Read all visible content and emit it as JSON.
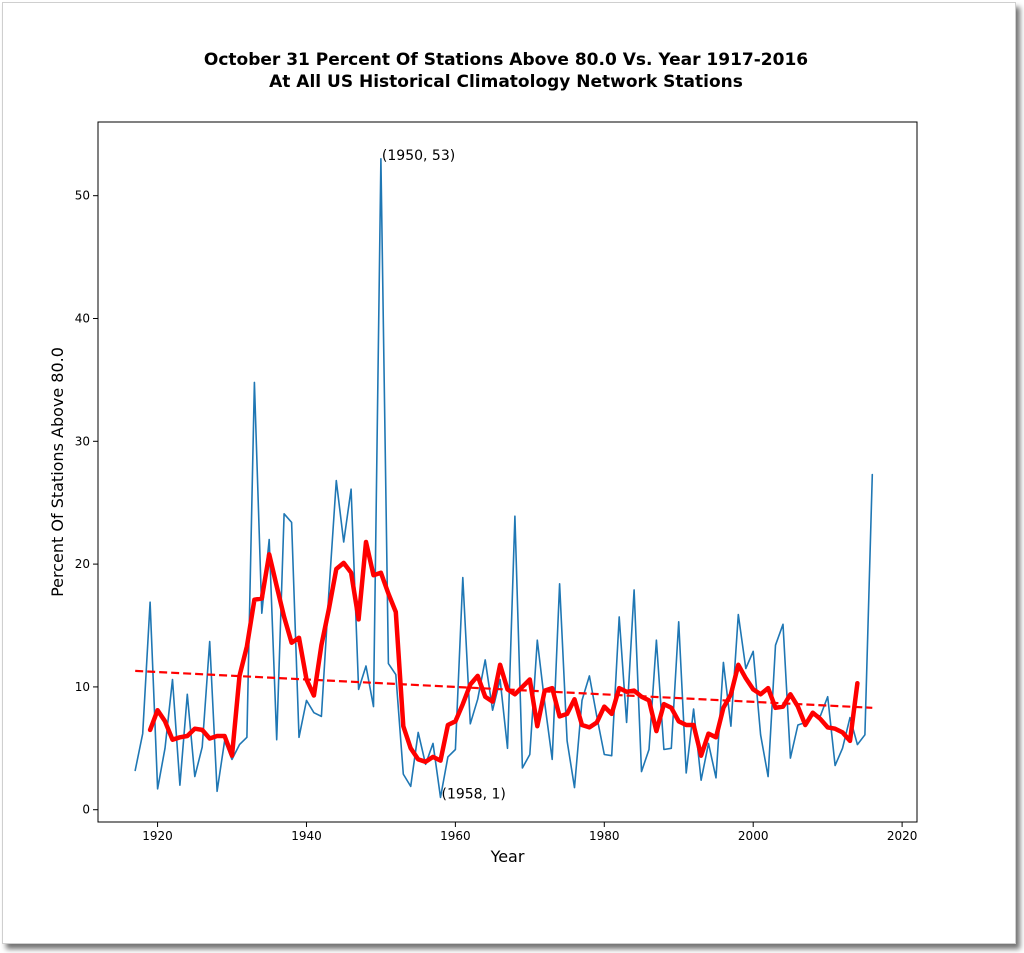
{
  "chart_data": {
    "type": "line",
    "title_line1": "October 31 Percent Of Stations Above 80.0 Vs. Year 1917-2016",
    "title_line2": "At All US Historical Climatology Network Stations",
    "xlabel": "Year",
    "ylabel": "Percent Of Stations Above 80.0",
    "xlim": [
      1912,
      2022
    ],
    "ylim": [
      -1,
      56
    ],
    "x_ticks": [
      1920,
      1940,
      1960,
      1980,
      2000,
      2020
    ],
    "y_ticks": [
      0,
      10,
      20,
      30,
      40,
      50
    ],
    "grid": false,
    "series": [
      {
        "style": "thin",
        "color": "#1f77b4",
        "x": [
          1917,
          1918,
          1919,
          1920,
          1921,
          1922,
          1923,
          1924,
          1925,
          1926,
          1927,
          1928,
          1929,
          1930,
          1931,
          1932,
          1933,
          1934,
          1935,
          1936,
          1937,
          1938,
          1939,
          1940,
          1941,
          1942,
          1943,
          1944,
          1945,
          1946,
          1947,
          1948,
          1949,
          1950,
          1951,
          1952,
          1953,
          1954,
          1955,
          1956,
          1957,
          1958,
          1959,
          1960,
          1961,
          1962,
          1963,
          1964,
          1965,
          1966,
          1967,
          1968,
          1969,
          1970,
          1971,
          1972,
          1973,
          1974,
          1975,
          1976,
          1977,
          1978,
          1979,
          1980,
          1981,
          1982,
          1983,
          1984,
          1985,
          1986,
          1987,
          1988,
          1989,
          1990,
          1991,
          1992,
          1993,
          1994,
          1995,
          1996,
          1997,
          1998,
          1999,
          2000,
          2001,
          2002,
          2003,
          2004,
          2005,
          2006,
          2007,
          2008,
          2009,
          2010,
          2011,
          2012,
          2013,
          2014,
          2015,
          2016
        ],
        "y": [
          3.2,
          6.2,
          16.9,
          1.7,
          5.0,
          10.6,
          2.0,
          9.4,
          2.7,
          5.1,
          13.7,
          1.5,
          5.6,
          4.1,
          5.3,
          5.9,
          34.8,
          16.0,
          22.0,
          5.7,
          24.1,
          23.4,
          5.9,
          8.9,
          7.9,
          7.6,
          17.6,
          26.8,
          21.8,
          26.1,
          9.8,
          11.7,
          8.4,
          53.0,
          11.9,
          11.0,
          2.9,
          1.9,
          6.3,
          3.7,
          5.4,
          1.0,
          4.3,
          4.9,
          18.9,
          7.0,
          9.0,
          12.2,
          8.1,
          10.6,
          5.0,
          23.9,
          3.4,
          4.5,
          13.8,
          8.7,
          4.1,
          18.4,
          5.6,
          1.8,
          8.9,
          10.9,
          7.6,
          4.5,
          4.4,
          15.7,
          7.1,
          17.9,
          3.1,
          4.9,
          13.8,
          4.9,
          5.0,
          15.3,
          3.0,
          8.2,
          2.4,
          5.4,
          2.6,
          12.0,
          6.8,
          15.9,
          11.5,
          12.9,
          6.1,
          2.7,
          13.4,
          15.1,
          4.2,
          6.9,
          7.1,
          7.9,
          7.6,
          9.2,
          3.6,
          5.0,
          7.5,
          5.3,
          6.1,
          27.3
        ]
      },
      {
        "style": "thick",
        "color": "#ff0000",
        "x": [
          1919,
          1920,
          1921,
          1922,
          1923,
          1924,
          1925,
          1926,
          1927,
          1928,
          1929,
          1930,
          1931,
          1932,
          1933,
          1934,
          1935,
          1936,
          1937,
          1938,
          1939,
          1940,
          1941,
          1942,
          1943,
          1944,
          1945,
          1946,
          1947,
          1948,
          1949,
          1950,
          1951,
          1952,
          1953,
          1954,
          1955,
          1956,
          1957,
          1958,
          1959,
          1960,
          1961,
          1962,
          1963,
          1964,
          1965,
          1966,
          1967,
          1968,
          1969,
          1970,
          1971,
          1972,
          1973,
          1974,
          1975,
          1976,
          1977,
          1978,
          1979,
          1980,
          1981,
          1982,
          1983,
          1984,
          1985,
          1986,
          1987,
          1988,
          1989,
          1990,
          1991,
          1992,
          1993,
          1994,
          1995,
          1996,
          1997,
          1998,
          1999,
          2000,
          2001,
          2002,
          2003,
          2004,
          2005,
          2006,
          2007,
          2008,
          2009,
          2010,
          2011,
          2012,
          2013,
          2014
        ],
        "y": [
          6.5,
          8.1,
          7.2,
          5.7,
          5.9,
          6.0,
          6.6,
          6.5,
          5.8,
          6.0,
          6.0,
          4.4,
          10.9,
          13.3,
          17.1,
          17.2,
          20.8,
          18.2,
          15.7,
          13.6,
          14.0,
          10.6,
          9.3,
          13.4,
          16.3,
          19.6,
          20.1,
          19.3,
          15.5,
          21.8,
          19.1,
          19.3,
          17.6,
          16.1,
          6.8,
          5.0,
          4.1,
          3.9,
          4.3,
          4.0,
          6.9,
          7.2,
          8.6,
          10.2,
          10.9,
          9.2,
          8.8,
          11.8,
          9.8,
          9.4,
          10.0,
          10.6,
          6.8,
          9.7,
          9.9,
          7.6,
          7.8,
          9.0,
          6.9,
          6.7,
          7.1,
          8.4,
          7.8,
          9.9,
          9.6,
          9.7,
          9.2,
          8.9,
          6.4,
          8.6,
          8.3,
          7.2,
          6.9,
          6.9,
          4.4,
          6.2,
          5.9,
          8.3,
          9.4,
          11.8,
          10.7,
          9.8,
          9.4,
          9.9,
          8.3,
          8.4,
          9.4,
          8.4,
          6.9,
          7.9,
          7.4,
          6.7,
          6.6,
          6.3,
          5.6,
          10.3
        ]
      },
      {
        "style": "dashed",
        "color": "#ff0000",
        "x": [
          1917,
          2016
        ],
        "y": [
          11.3,
          8.3
        ]
      }
    ],
    "annotations": [
      {
        "text": "(1950, 53)",
        "x": 1950,
        "y": 53
      },
      {
        "text": "(1958, 1)",
        "x": 1958,
        "y": 1
      }
    ]
  }
}
